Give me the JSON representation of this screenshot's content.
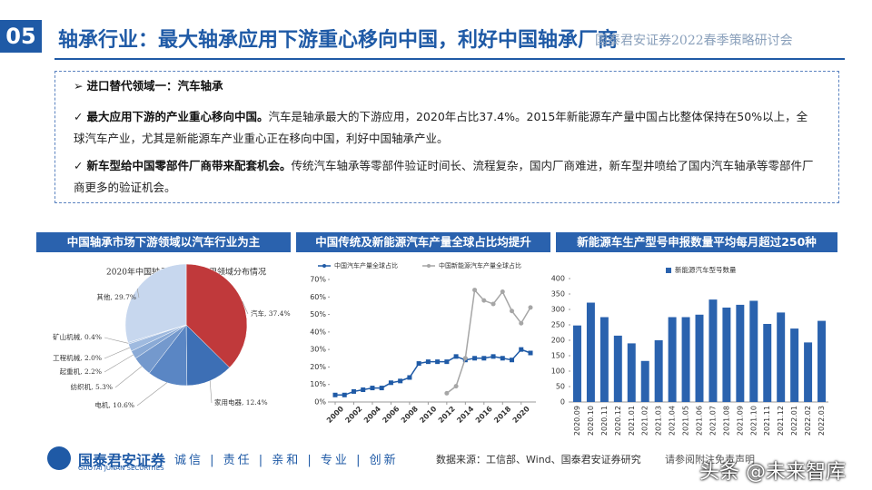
{
  "header": {
    "number": "05",
    "title": "轴承行业：最大轴承应用下游重心移向中国，利好中国轴承厂商",
    "conference": "国泰君安证券2022春季策略研讨会"
  },
  "bullets": [
    {
      "bold": "进口替代领域一：汽车轴承",
      "text": ""
    },
    {
      "bold": "最大应用下游的产业重心移向中国。",
      "text": "汽车是轴承最大的下游应用，2020年占比37.4%。2015年新能源车产量中国占比整体保持在50%以上，全球汽车产业，尤其是新能源车产业重心正在移向中国，利好中国轴承产业。"
    },
    {
      "bold": "新车型给中国零部件厂商带来配套机会。",
      "text": "传统汽车轴承等零部件验证时间长、流程复杂，国内厂商难进，新车型井喷给了国内汽车轴承等零部件厂商更多的验证机会。"
    }
  ],
  "chart_data": [
    {
      "type": "pie",
      "header": "中国轴承市场下游领域以汽车行业为主",
      "title": "2020年中国轴承行业下游应用领域分布情况",
      "categories": [
        "汽车",
        "家用电器",
        "电机",
        "纺织机",
        "起重机",
        "工程机械",
        "矿山机械",
        "其他"
      ],
      "values": [
        37.4,
        12.4,
        10.6,
        5.3,
        2.2,
        2.0,
        0.4,
        29.7
      ],
      "value_labels": [
        "37.4%",
        "12.4%",
        "10.6%",
        "5.3%",
        "2.2%",
        "2.0%",
        "0.4%",
        "29.7%"
      ],
      "colors": [
        "#c0393b",
        "#3d6fb5",
        "#5a86c4",
        "#7499cd",
        "#8aaad6",
        "#9fbadf",
        "#b3c8e6",
        "#c7d7ee"
      ]
    },
    {
      "type": "line",
      "header": "中国传统及新能源汽车产量全球占比均提升",
      "x": [
        2000,
        2001,
        2002,
        2003,
        2004,
        2005,
        2006,
        2007,
        2008,
        2009,
        2010,
        2011,
        2012,
        2013,
        2014,
        2015,
        2016,
        2017,
        2018,
        2019,
        2020,
        2021
      ],
      "xlim": [
        2000,
        2021
      ],
      "xticks": [
        2000,
        2002,
        2004,
        2006,
        2008,
        2010,
        2012,
        2014,
        2016,
        2018,
        2020
      ],
      "ylim": [
        0,
        70
      ],
      "yticks": [
        {
          "value": 0,
          "label": "0%"
        },
        {
          "value": 10,
          "label": "10%"
        },
        {
          "value": 20,
          "label": "20%"
        },
        {
          "value": 30,
          "label": "30%"
        },
        {
          "value": 40,
          "label": "40%"
        },
        {
          "value": 50,
          "label": "50%"
        },
        {
          "value": 60,
          "label": "60%"
        },
        {
          "value": 70,
          "label": "70%"
        }
      ],
      "series": [
        {
          "name": "中国汽车产量全球占比",
          "color": "#1f5aa6",
          "values": [
            4,
            4,
            6,
            7,
            8,
            8,
            11,
            12,
            14,
            22,
            23,
            23,
            23,
            26,
            24,
            25,
            25,
            26,
            25,
            24,
            30,
            28
          ]
        },
        {
          "name": "中国新能源汽车产量全球占比",
          "color": "#a6a6a6",
          "values": [
            null,
            null,
            null,
            null,
            null,
            null,
            null,
            null,
            null,
            null,
            null,
            null,
            5,
            9,
            25,
            64,
            58,
            56,
            63,
            52,
            45,
            54
          ]
        }
      ]
    },
    {
      "type": "bar",
      "header": "新能源车生产型号申报数量平均每月超过250种",
      "categories": [
        "2020.09",
        "2020.10",
        "2020.11",
        "2020.12",
        "2021.01",
        "2021.02",
        "2021.03",
        "2021.04",
        "2021.05",
        "2021.06",
        "2021.07",
        "2021.08",
        "2021.09",
        "2021.10",
        "2021.11",
        "2021.12",
        "2022.01",
        "2022.02",
        "2022.03"
      ],
      "ylim": [
        0,
        400
      ],
      "yticks": [
        0,
        50,
        100,
        150,
        200,
        250,
        300,
        350,
        400
      ],
      "series": [
        {
          "name": "新能源汽车型号数量",
          "color": "#2a62ae",
          "values": [
            248,
            322,
            275,
            215,
            190,
            133,
            200,
            275,
            275,
            283,
            332,
            306,
            315,
            328,
            253,
            290,
            238,
            193,
            263
          ]
        }
      ]
    }
  ],
  "footer": {
    "company": "国泰君安证券",
    "company_en": "GUOTAI JUNAN SECURITIES",
    "motto": "诚信 | 责任 | 亲和 | 专业 | 创新",
    "source": "数据来源：工信部、Wind、国泰君安证券研究",
    "disclaimer": "请参阅附注免责声明",
    "watermark": "头条 @未来智库"
  }
}
